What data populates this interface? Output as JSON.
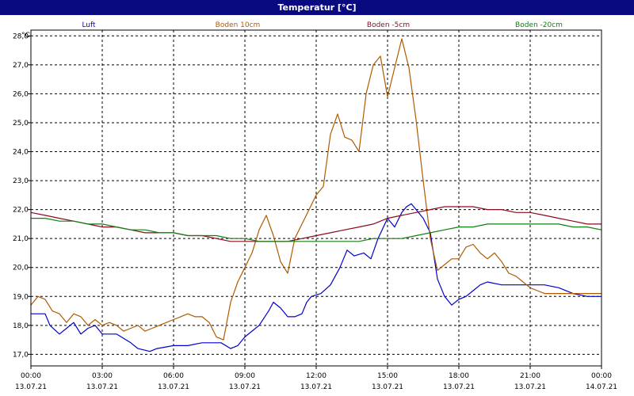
{
  "window": {
    "title": "Temperatur [°C]"
  },
  "chart_data": {
    "type": "line",
    "title": "Temperatur [°C]",
    "ylabel": "°C",
    "ylim": [
      16.6,
      28.2
    ],
    "yticks": [
      "17,0",
      "18,0",
      "19,0",
      "20,0",
      "21,0",
      "22,0",
      "23,0",
      "24,0",
      "25,0",
      "26,0",
      "27,0",
      "28,0"
    ],
    "ytick_values": [
      17,
      18,
      19,
      20,
      21,
      22,
      23,
      24,
      25,
      26,
      27,
      28
    ],
    "xlim": [
      0,
      24
    ],
    "xticks": [
      {
        "h": 0,
        "time": "00:00",
        "date": "13.07.21"
      },
      {
        "h": 3,
        "time": "03:00",
        "date": "13.07.21"
      },
      {
        "h": 6,
        "time": "06:00",
        "date": "13.07.21"
      },
      {
        "h": 9,
        "time": "09:00",
        "date": "13.07.21"
      },
      {
        "h": 12,
        "time": "12:00",
        "date": "13.07.21"
      },
      {
        "h": 15,
        "time": "15:00",
        "date": "13.07.21"
      },
      {
        "h": 18,
        "time": "18:00",
        "date": "13.07.21"
      },
      {
        "h": 21,
        "time": "21:00",
        "date": "13.07.21"
      },
      {
        "h": 24,
        "time": "00:00",
        "date": "14.07.21"
      }
    ],
    "grid": true,
    "legend_position": "top",
    "series": [
      {
        "name": "Luft",
        "color": "#0000cc",
        "x": [
          0,
          0.6,
          0.8,
          1.2,
          1.5,
          1.8,
          2.1,
          2.4,
          2.7,
          3.0,
          3.6,
          4.2,
          4.5,
          5.0,
          5.3,
          6.0,
          6.6,
          7.2,
          8.0,
          8.4,
          8.7,
          9.0,
          9.3,
          9.6,
          10.0,
          10.2,
          10.5,
          10.8,
          11.1,
          11.4,
          11.6,
          11.8,
          12.2,
          12.6,
          13.0,
          13.3,
          13.6,
          14.0,
          14.3,
          14.6,
          15.0,
          15.3,
          15.6,
          15.8,
          16.0,
          16.2,
          16.5,
          16.8,
          17.1,
          17.4,
          17.7,
          18.0,
          18.3,
          18.6,
          18.9,
          19.2,
          19.8,
          20.4,
          21.0,
          21.6,
          22.2,
          22.8,
          23.4,
          24.0
        ],
        "y": [
          18.4,
          18.4,
          18.0,
          17.7,
          17.9,
          18.1,
          17.7,
          17.9,
          18.0,
          17.7,
          17.7,
          17.4,
          17.2,
          17.1,
          17.2,
          17.3,
          17.3,
          17.4,
          17.4,
          17.2,
          17.3,
          17.6,
          17.8,
          18.0,
          18.5,
          18.8,
          18.6,
          18.3,
          18.3,
          18.4,
          18.8,
          19.0,
          19.1,
          19.4,
          20.0,
          20.6,
          20.4,
          20.5,
          20.3,
          21.0,
          21.7,
          21.4,
          21.9,
          22.1,
          22.2,
          22.0,
          21.7,
          21.2,
          19.6,
          19.0,
          18.7,
          18.9,
          19.0,
          19.2,
          19.4,
          19.5,
          19.4,
          19.4,
          19.4,
          19.4,
          19.3,
          19.1,
          19.0,
          19.0
        ]
      },
      {
        "name": "Boden 10cm",
        "color": "#b05a00",
        "x": [
          0,
          0.3,
          0.6,
          0.9,
          1.2,
          1.5,
          1.8,
          2.1,
          2.4,
          2.7,
          3.0,
          3.3,
          3.6,
          3.9,
          4.2,
          4.5,
          4.8,
          5.1,
          5.4,
          5.7,
          6.0,
          6.3,
          6.6,
          6.9,
          7.2,
          7.5,
          7.8,
          8.1,
          8.4,
          8.7,
          9.0,
          9.3,
          9.6,
          9.9,
          10.2,
          10.5,
          10.8,
          11.1,
          11.4,
          11.7,
          12.0,
          12.3,
          12.6,
          12.9,
          13.2,
          13.5,
          13.8,
          14.1,
          14.4,
          14.7,
          15.0,
          15.3,
          15.6,
          15.9,
          16.2,
          16.5,
          16.8,
          17.1,
          17.4,
          17.7,
          18.0,
          18.3,
          18.6,
          18.9,
          19.2,
          19.5,
          19.8,
          20.1,
          20.4,
          20.7,
          21.0,
          21.3,
          21.6,
          21.9,
          22.2,
          22.5,
          22.8,
          23.1,
          23.4,
          23.7,
          24.0
        ],
        "y": [
          18.7,
          19.0,
          18.9,
          18.5,
          18.4,
          18.1,
          18.4,
          18.3,
          18.0,
          18.2,
          18.0,
          18.1,
          18.0,
          17.8,
          17.9,
          18.0,
          17.8,
          17.9,
          18.0,
          18.1,
          18.2,
          18.3,
          18.4,
          18.3,
          18.3,
          18.1,
          17.6,
          17.5,
          18.8,
          19.5,
          20.0,
          20.5,
          21.3,
          21.8,
          21.1,
          20.2,
          19.8,
          21.0,
          21.5,
          22.0,
          22.5,
          22.8,
          24.6,
          25.3,
          24.5,
          24.4,
          24.0,
          26.0,
          27.0,
          27.3,
          25.9,
          26.9,
          27.9,
          26.9,
          25.1,
          23.0,
          21.0,
          19.9,
          20.1,
          20.3,
          20.3,
          20.7,
          20.8,
          20.5,
          20.3,
          20.5,
          20.2,
          19.8,
          19.7,
          19.5,
          19.3,
          19.2,
          19.1,
          19.1,
          19.1,
          19.1,
          19.1,
          19.1,
          19.1,
          19.1,
          19.1
        ]
      },
      {
        "name": "Boden -5cm",
        "color": "#8b0a1e",
        "x": [
          0,
          0.6,
          1.2,
          1.8,
          2.4,
          3.0,
          3.6,
          4.2,
          4.8,
          5.4,
          6.0,
          6.6,
          7.2,
          7.8,
          8.4,
          9.0,
          9.6,
          10.2,
          10.8,
          11.4,
          12.0,
          12.6,
          13.2,
          13.8,
          14.4,
          15.0,
          15.6,
          16.2,
          16.8,
          17.4,
          18.0,
          18.6,
          19.2,
          19.8,
          20.4,
          21.0,
          21.6,
          22.2,
          22.8,
          23.4,
          24.0
        ],
        "y": [
          21.9,
          21.8,
          21.7,
          21.6,
          21.5,
          21.4,
          21.4,
          21.3,
          21.2,
          21.2,
          21.2,
          21.1,
          21.1,
          21.0,
          20.9,
          20.9,
          20.9,
          20.9,
          20.9,
          21.0,
          21.1,
          21.2,
          21.3,
          21.4,
          21.5,
          21.7,
          21.8,
          21.9,
          22.0,
          22.1,
          22.1,
          22.1,
          22.0,
          22.0,
          21.9,
          21.9,
          21.8,
          21.7,
          21.6,
          21.5,
          21.5
        ]
      },
      {
        "name": "Boden -20cm",
        "color": "#108010",
        "x": [
          0,
          0.6,
          1.2,
          1.8,
          2.4,
          3.0,
          3.6,
          4.2,
          4.8,
          5.4,
          6.0,
          6.6,
          7.2,
          7.8,
          8.4,
          9.0,
          9.6,
          10.2,
          10.8,
          11.4,
          12.0,
          12.6,
          13.2,
          13.8,
          14.4,
          15.0,
          15.6,
          16.2,
          16.8,
          17.4,
          18.0,
          18.6,
          19.2,
          19.8,
          20.4,
          21.0,
          21.6,
          22.2,
          22.8,
          23.4,
          24.0
        ],
        "y": [
          21.7,
          21.7,
          21.6,
          21.6,
          21.5,
          21.5,
          21.4,
          21.3,
          21.3,
          21.2,
          21.2,
          21.1,
          21.1,
          21.1,
          21.0,
          21.0,
          20.9,
          20.9,
          20.9,
          20.9,
          20.9,
          20.9,
          20.9,
          20.9,
          21.0,
          21.0,
          21.0,
          21.1,
          21.2,
          21.3,
          21.4,
          21.4,
          21.5,
          21.5,
          21.5,
          21.5,
          21.5,
          21.5,
          21.4,
          21.4,
          21.3
        ]
      }
    ]
  }
}
